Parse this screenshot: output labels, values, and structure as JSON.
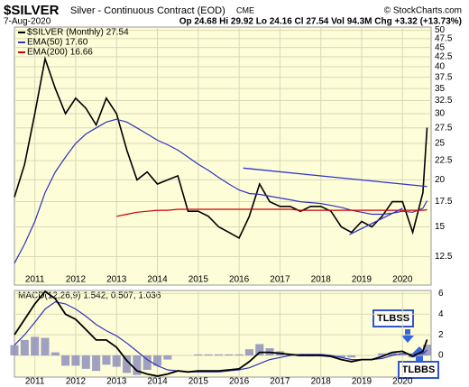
{
  "chart_data": {
    "type": "line",
    "title": "$SILVER",
    "subtitle": "Silver - Continuous Contract (EOD)",
    "exchange": "CME",
    "source": "© StockCharts.com",
    "date": "7-Aug-2020",
    "quote": "Op 24.68  Hi 29.92  Lo 24.16  Cl 27.54  Vol 94.3M  Chg +3.32 (+13.73%)",
    "log_scale": true,
    "grid": true,
    "x": [
      2010.5,
      2010.75,
      2011,
      2011.25,
      2011.5,
      2011.75,
      2012,
      2012.25,
      2012.5,
      2012.75,
      2013,
      2013.25,
      2013.5,
      2013.75,
      2014,
      2014.25,
      2014.5,
      2014.75,
      2015,
      2015.25,
      2015.5,
      2015.75,
      2016,
      2016.25,
      2016.5,
      2016.75,
      2017,
      2017.25,
      2017.5,
      2017.75,
      2018,
      2018.25,
      2018.5,
      2018.75,
      2019,
      2019.25,
      2019.5,
      2019.75,
      2020,
      2020.25,
      2020.5,
      2020.6
    ],
    "xlim": [
      2010.5,
      2020.7
    ],
    "xticks": [
      2011,
      2012,
      2013,
      2014,
      2015,
      2016,
      2017,
      2018,
      2019,
      2020
    ],
    "ylim": [
      10.5,
      51
    ],
    "yticks": [
      12.5,
      15,
      17.5,
      20,
      22.5,
      25,
      27.5,
      30,
      32.5,
      35,
      37.5,
      40,
      42.5,
      45,
      47.5,
      50
    ],
    "series": [
      {
        "name": "$SILVER (Monthly) 27.54",
        "color": "#000000",
        "values": [
          18,
          22,
          30,
          42,
          35,
          30,
          33,
          31,
          28,
          33,
          30,
          24,
          20,
          21,
          19.5,
          20,
          20.5,
          16.5,
          16.5,
          16,
          15,
          14.5,
          14,
          16,
          19.5,
          17.5,
          17,
          17,
          16.5,
          17,
          17,
          16.5,
          15,
          14.5,
          15.5,
          15,
          16,
          17.5,
          17.5,
          14.5,
          18.5,
          27.54
        ]
      },
      {
        "name": "EMA(50) 17.60",
        "color": "#3333bb",
        "values": [
          12,
          13.5,
          15.5,
          18.5,
          21,
          23,
          25,
          26.5,
          27.5,
          28.5,
          29,
          28.5,
          27.5,
          26.5,
          25.5,
          24.8,
          24,
          23,
          22,
          21.2,
          20.3,
          19.5,
          18.8,
          18.4,
          18.3,
          18.1,
          17.9,
          17.7,
          17.5,
          17.4,
          17.3,
          17.1,
          16.9,
          16.6,
          16.4,
          16.2,
          16.2,
          16.3,
          16.5,
          16.4,
          16.8,
          17.6
        ]
      },
      {
        "name": "EMA(200) 16.66",
        "color": "#cc0000",
        "values": [
          null,
          null,
          null,
          null,
          null,
          null,
          null,
          null,
          null,
          null,
          16,
          16.2,
          16.4,
          16.5,
          16.6,
          16.6,
          16.7,
          16.7,
          16.7,
          16.7,
          16.7,
          16.7,
          16.7,
          16.7,
          16.7,
          16.7,
          16.7,
          16.7,
          16.6,
          16.6,
          16.6,
          16.6,
          16.6,
          16.6,
          16.6,
          16.6,
          16.6,
          16.6,
          16.6,
          16.6,
          16.6,
          16.66
        ]
      }
    ],
    "trendlines": [
      {
        "color": "#3333cc",
        "x": [
          2016.1,
          2020.6
        ],
        "y": [
          21.5,
          19.2
        ]
      },
      {
        "color": "#3333cc",
        "x": [
          2018.7,
          2020.0
        ],
        "y": [
          14.3,
          16.8
        ]
      }
    ],
    "macd": {
      "label": "MACD(12,26,9) 1.542, 0.507, 1.036",
      "ylim": [
        -2.1,
        6.3
      ],
      "yticks": [
        0,
        2,
        4,
        6
      ],
      "macd": {
        "color": "#000000",
        "values": [
          2,
          3.5,
          5,
          6.2,
          5.5,
          4,
          3.5,
          2.5,
          1.5,
          1.5,
          0.8,
          -0.5,
          -1.5,
          -1.8,
          -2.0,
          -1.8,
          -1.5,
          -1.6,
          -1.5,
          -1.5,
          -1.5,
          -1.4,
          -1.3,
          -0.6,
          0.3,
          0.3,
          0.2,
          0.1,
          0,
          0,
          0,
          -0.1,
          -0.4,
          -0.6,
          -0.4,
          -0.4,
          -0.1,
          0.3,
          0.4,
          -0.1,
          0.4,
          1.542
        ]
      },
      "signal": {
        "color": "#3333bb",
        "values": [
          1,
          2,
          3.2,
          4.5,
          5.2,
          5,
          4.5,
          3.8,
          3,
          2.4,
          1.9,
          1.2,
          0.4,
          -0.4,
          -1,
          -1.4,
          -1.5,
          -1.6,
          -1.6,
          -1.6,
          -1.6,
          -1.5,
          -1.4,
          -1.2,
          -0.8,
          -0.4,
          -0.2,
          0,
          0.1,
          0.1,
          0.1,
          0,
          -0.2,
          -0.4,
          -0.4,
          -0.4,
          -0.3,
          0,
          0.2,
          0.1,
          0.2,
          0.507
        ]
      },
      "histogram": {
        "color": "#8888bb",
        "values": [
          1,
          1.5,
          1.8,
          1.7,
          0.3,
          -1,
          -1,
          -1.3,
          -1.5,
          -0.9,
          -1.1,
          -1.7,
          -1.9,
          -1.4,
          -1,
          -0.4,
          0,
          0,
          0.1,
          0.1,
          0.1,
          0.1,
          0.1,
          0.6,
          1.1,
          0.7,
          0.4,
          0.1,
          -0.1,
          -0.1,
          -0.1,
          -0.1,
          -0.2,
          -0.2,
          0,
          0,
          0.2,
          0.3,
          0.2,
          -0.2,
          0.2,
          1.036
        ]
      },
      "annotations": [
        "TLBSS",
        "TLBBS"
      ]
    }
  }
}
